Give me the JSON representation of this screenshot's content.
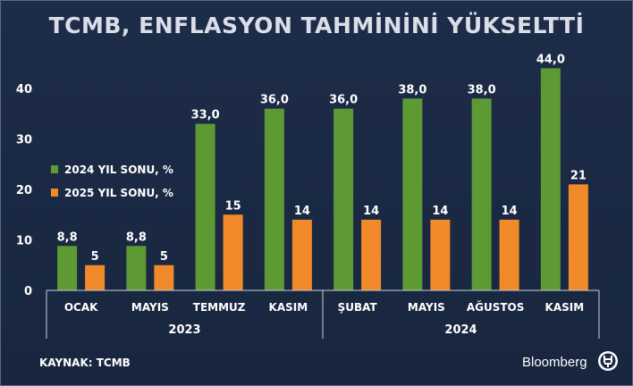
{
  "chart_data": {
    "type": "bar",
    "title": "TCMB, ENFLASYON TAHMİNİNİ YÜKSELTTİ",
    "categories": [
      "OCAK",
      "MAYIS",
      "TEMMUZ",
      "KASIM",
      "ŞUBAT",
      "MAYIS",
      "AĞUSTOS",
      "KASIM"
    ],
    "groups": [
      {
        "label": "2023",
        "count": 4
      },
      {
        "label": "2024",
        "count": 4
      }
    ],
    "series": [
      {
        "name": "2024 YIL SONU, %",
        "color": "#5d9a34",
        "values": [
          8.8,
          8.8,
          33.0,
          36.0,
          36.0,
          38.0,
          38.0,
          44.0
        ],
        "labels": [
          "8,8",
          "8,8",
          "33,0",
          "36,0",
          "36,0",
          "38,0",
          "38,0",
          "44,0"
        ]
      },
      {
        "name": "2025 YIL SONU, %",
        "color": "#f18a2a",
        "values": [
          5,
          5,
          15,
          14,
          14,
          14,
          14,
          21
        ],
        "labels": [
          "5",
          "5",
          "15",
          "14",
          "14",
          "14",
          "14",
          "21"
        ]
      }
    ],
    "yticks": [
      0,
      10,
      20,
      30,
      40
    ],
    "ylim": [
      0,
      44
    ],
    "legend_position": "left-middle",
    "grid": false
  },
  "source": "KAYNAK: TCMB",
  "brand": "Bloomberg",
  "brand_logo": "HT"
}
